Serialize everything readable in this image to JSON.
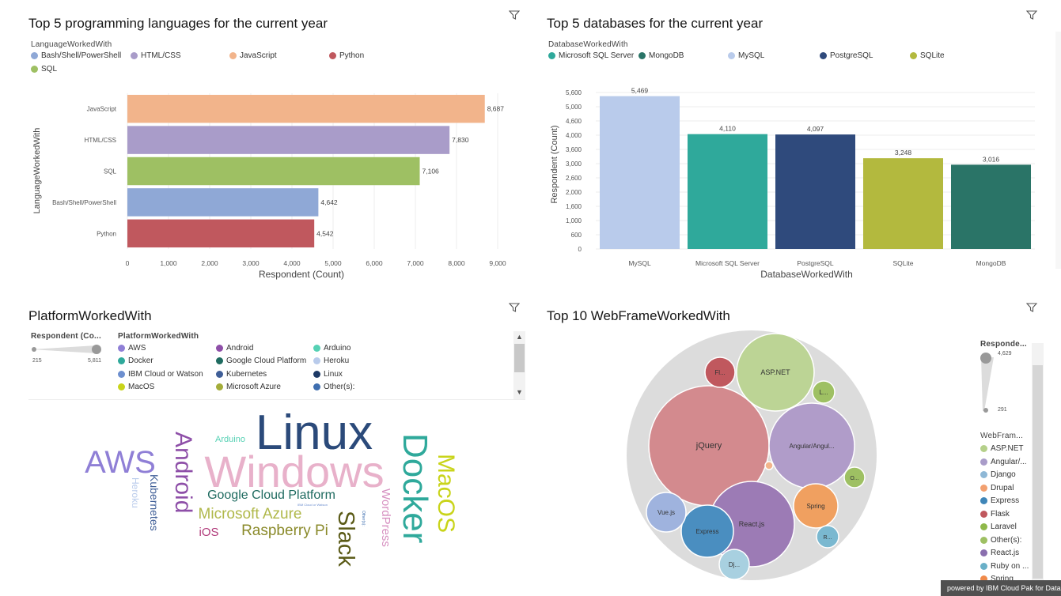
{
  "filter_icon": "filter-icon",
  "languages": {
    "title": "Top 5 programming languages for the current year",
    "legend_title": "LanguageWorkedWith",
    "legend": [
      {
        "label": "Bash/Shell/PowerShell",
        "color": "#8fa8d6"
      },
      {
        "label": "HTML/CSS",
        "color": "#a99cc9"
      },
      {
        "label": "JavaScript",
        "color": "#f2b48b"
      },
      {
        "label": "Python",
        "color": "#c0585e"
      },
      {
        "label": "SQL",
        "color": "#9ec063"
      }
    ],
    "chart_data": {
      "type": "bar",
      "orientation": "horizontal",
      "categories": [
        "JavaScript",
        "HTML/CSS",
        "SQL",
        "Bash/Shell/PowerShell",
        "Python"
      ],
      "values": [
        8687,
        7830,
        7106,
        4642,
        4542
      ],
      "value_labels": [
        "8,687",
        "7,830",
        "7,106",
        "4,642",
        "4,542"
      ],
      "colors": [
        "#f2b48b",
        "#a99cc9",
        "#9ec063",
        "#8fa8d6",
        "#c0585e"
      ],
      "xticks": [
        "0",
        "1,000",
        "2,000",
        "3,000",
        "4,000",
        "5,000",
        "6,000",
        "7,000",
        "8,000",
        "9,000"
      ],
      "xlim": [
        0,
        9000
      ],
      "xlabel": "Respondent (Count)",
      "ylabel": "LanguageWorkedWith"
    }
  },
  "databases": {
    "title": "Top 5 databases for the current year",
    "legend_title": "DatabaseWorkedWith",
    "legend": [
      {
        "label": "Microsoft SQL Server",
        "color": "#2fa99b"
      },
      {
        "label": "MongoDB",
        "color": "#2a7467"
      },
      {
        "label": "MySQL",
        "color": "#b9cbeb"
      },
      {
        "label": "PostgreSQL",
        "color": "#2f4a7c"
      },
      {
        "label": "SQLite",
        "color": "#b3b93e"
      }
    ],
    "chart_data": {
      "type": "bar",
      "categories": [
        "MySQL",
        "Microsoft SQL Server",
        "PostgreSQL",
        "SQLite",
        "MongoDB"
      ],
      "values": [
        5469,
        4110,
        4097,
        3248,
        3016
      ],
      "value_labels": [
        "5,469",
        "4,110",
        "4,097",
        "3,248",
        "3,016"
      ],
      "colors": [
        "#b9cbeb",
        "#2fa99b",
        "#2f4a7c",
        "#b3b93e",
        "#2a7467"
      ],
      "yticks": [
        "0",
        "600",
        "1,000",
        "1,600",
        "2,000",
        "2,600",
        "3,000",
        "3,600",
        "4,000",
        "4,600",
        "5,000",
        "5,600"
      ],
      "ylim": [
        0,
        5600
      ],
      "xlabel": "DatabaseWorkedWith",
      "ylabel": "Respondent (Count)"
    }
  },
  "platforms": {
    "title": "PlatformWorkedWith",
    "slider_title": "Respondent (Co...",
    "slider_min": "215",
    "slider_max": "5,811",
    "legend_title": "PlatformWorkedWith",
    "legend": [
      {
        "label": "AWS",
        "color": "#8f7fd6"
      },
      {
        "label": "Android",
        "color": "#8e4fa8"
      },
      {
        "label": "Arduino",
        "color": "#56d1b4"
      },
      {
        "label": "Docker",
        "color": "#2fa99b"
      },
      {
        "label": "Google Cloud Platform",
        "color": "#1f6b60"
      },
      {
        "label": "Heroku",
        "color": "#b9cbeb"
      },
      {
        "label": "IBM Cloud or Watson",
        "color": "#6d8fcf"
      },
      {
        "label": "Kubernetes",
        "color": "#3f5e97"
      },
      {
        "label": "Linux",
        "color": "#1e3a66"
      },
      {
        "label": "MacOS",
        "color": "#c9d41a"
      },
      {
        "label": "Microsoft Azure",
        "color": "#a4ad3a"
      },
      {
        "label": "Other(s):",
        "color": "#3f6fb0"
      }
    ],
    "words": [
      {
        "text": "Linux",
        "color": "#2b4a7a"
      },
      {
        "text": "Windows",
        "color": "#e8b1ca"
      },
      {
        "text": "AWS",
        "color": "#8f7fd6"
      },
      {
        "text": "Android",
        "color": "#8e4fa8"
      },
      {
        "text": "Docker",
        "color": "#2fa99b"
      },
      {
        "text": "MacOS",
        "color": "#c9d41a"
      },
      {
        "text": "Slack",
        "color": "#5a5a16"
      },
      {
        "text": "WordPress",
        "color": "#d68fc0"
      },
      {
        "text": "Google Cloud Platform",
        "color": "#1f6b60"
      },
      {
        "text": "Microsoft Azure",
        "color": "#b0b84a"
      },
      {
        "text": "Raspberry Pi",
        "color": "#8a8a2a"
      },
      {
        "text": "iOS",
        "color": "#b03a7a"
      },
      {
        "text": "Kubernetes",
        "color": "#3f5e97"
      },
      {
        "text": "Heroku",
        "color": "#b9cbeb"
      },
      {
        "text": "Arduino",
        "color": "#56d1b4"
      },
      {
        "text": "IBM Cloud or Watson",
        "color": "#6d8fcf"
      },
      {
        "text": "Other(s):",
        "color": "#3f6fb0"
      }
    ]
  },
  "webframes": {
    "title": "Top 10 WebFrameWorkedWith",
    "slider_title": "Responde...",
    "slider_max": "4,629",
    "slider_min": "291",
    "legend_title": "WebFram...",
    "legend": [
      {
        "label": "ASP.NET",
        "color": "#b5d08a"
      },
      {
        "label": "Angular/...",
        "color": "#a99cc9"
      },
      {
        "label": "Django",
        "color": "#8fb8d6"
      },
      {
        "label": "Drupal",
        "color": "#f2a070"
      },
      {
        "label": "Express",
        "color": "#3f86b8"
      },
      {
        "label": "Flask",
        "color": "#c0585e"
      },
      {
        "label": "Laravel",
        "color": "#8fb84a"
      },
      {
        "label": "Other(s):",
        "color": "#9ec063"
      },
      {
        "label": "React.js",
        "color": "#8a6fae"
      },
      {
        "label": "Ruby on ...",
        "color": "#6ab0c8"
      },
      {
        "label": "Spring",
        "color": "#f08a4a"
      }
    ],
    "bubbles": [
      {
        "label": "jQuery",
        "color": "#d38a8e"
      },
      {
        "label": "React.js",
        "color": "#9c7bb5"
      },
      {
        "label": "Angular/Angul...",
        "color": "#b09cc9"
      },
      {
        "label": "ASP.NET",
        "color": "#bcd495"
      },
      {
        "label": "Express",
        "color": "#4a8ec0"
      },
      {
        "label": "Vue.js",
        "color": "#9fb3de"
      },
      {
        "label": "Spring",
        "color": "#f0a060"
      },
      {
        "label": "Fl...",
        "color": "#c0585e"
      },
      {
        "label": "L...",
        "color": "#9ec063"
      },
      {
        "label": "O...",
        "color": "#9ec063"
      },
      {
        "label": "R...",
        "color": "#7ab8d0"
      },
      {
        "label": "Dj...",
        "color": "#a8d0e0"
      },
      {
        "label": "",
        "color": "#f2b48b"
      }
    ]
  },
  "footer": {
    "powered_by": "powered by IBM Cloud Pak for Data"
  }
}
